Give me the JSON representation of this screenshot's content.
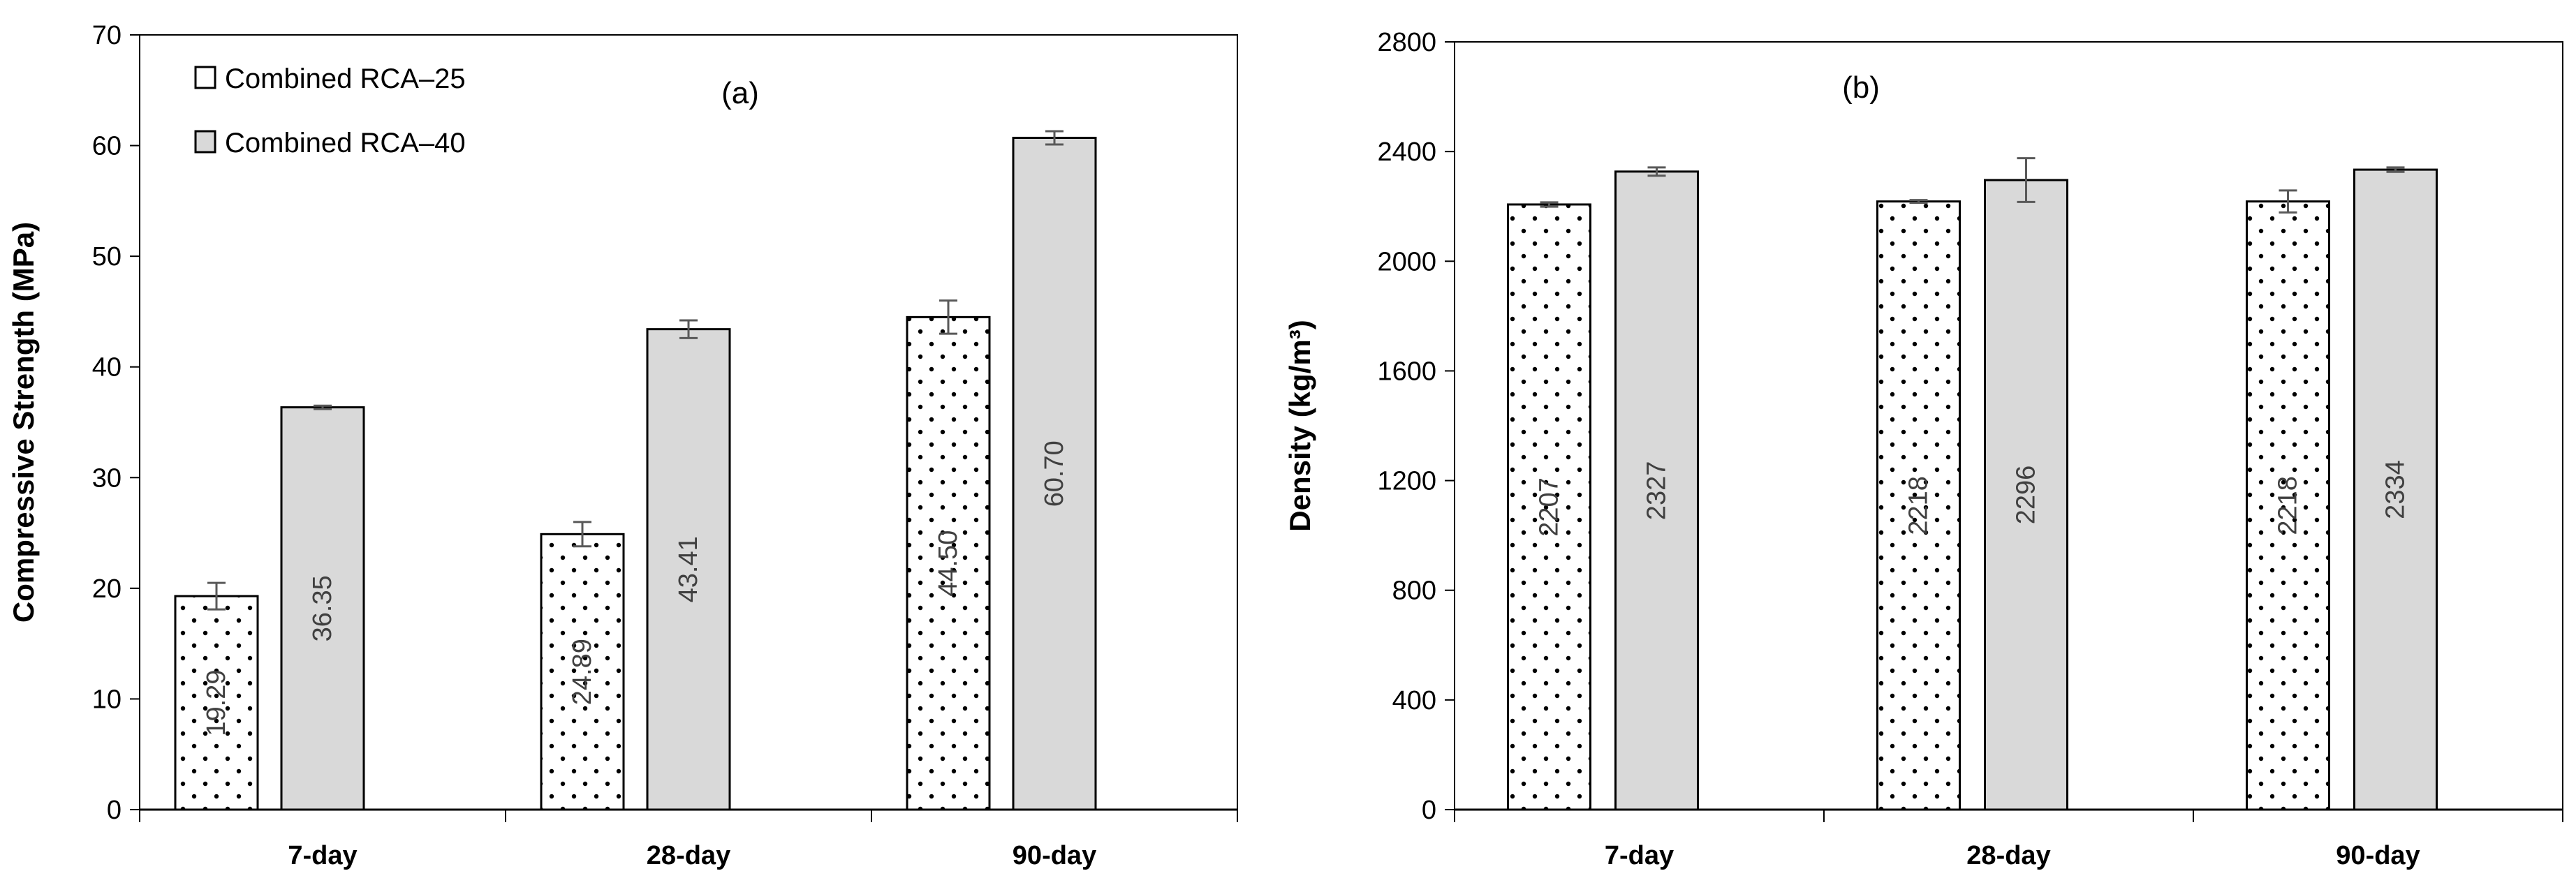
{
  "chart_data": [
    {
      "type": "bar",
      "panel_label": "(a)",
      "ylabel": "Compressive Strength (MPa)",
      "ylim": [
        0,
        70
      ],
      "yticks": [
        0,
        10,
        20,
        30,
        40,
        50,
        60,
        70
      ],
      "categories": [
        "7-day",
        "28-day",
        "90-day"
      ],
      "series": [
        {
          "name": "Combined RCA–25",
          "values": [
            19.29,
            24.89,
            44.5
          ],
          "labels": [
            "19.29",
            "24.89",
            "44.50"
          ],
          "errors": [
            1.2,
            1.1,
            1.5
          ],
          "pattern": "dots",
          "color": "#ffffff"
        },
        {
          "name": "Combined RCA–40",
          "values": [
            36.35,
            43.41,
            60.7
          ],
          "labels": [
            "36.35",
            "43.41",
            "60.70"
          ],
          "errors": [
            0.15,
            0.8,
            0.6
          ],
          "pattern": "solid",
          "color": "#d9d9d9"
        }
      ],
      "legend": "top-left",
      "grid": false
    },
    {
      "type": "bar",
      "panel_label": "(b)",
      "ylabel": "Density (kg/m³)",
      "ylim": [
        0,
        2800
      ],
      "yticks": [
        0,
        400,
        800,
        1200,
        1600,
        2000,
        2400,
        2800
      ],
      "categories": [
        "7-day",
        "28-day",
        "90-day"
      ],
      "series": [
        {
          "name": "Combined RCA–25",
          "values": [
            2207,
            2218,
            2218
          ],
          "labels": [
            "2207",
            "2218",
            "2218"
          ],
          "errors": [
            8,
            5,
            40
          ],
          "pattern": "dots",
          "color": "#ffffff"
        },
        {
          "name": "Combined RCA–40",
          "values": [
            2327,
            2296,
            2334
          ],
          "labels": [
            "2327",
            "2296",
            "2334"
          ],
          "errors": [
            15,
            80,
            8
          ],
          "pattern": "solid",
          "color": "#d9d9d9"
        }
      ],
      "grid": false
    }
  ],
  "colors": {
    "axis": "#000000",
    "bar_outline": "#000000",
    "error_bar": "#595959",
    "data_label": "#404040"
  }
}
